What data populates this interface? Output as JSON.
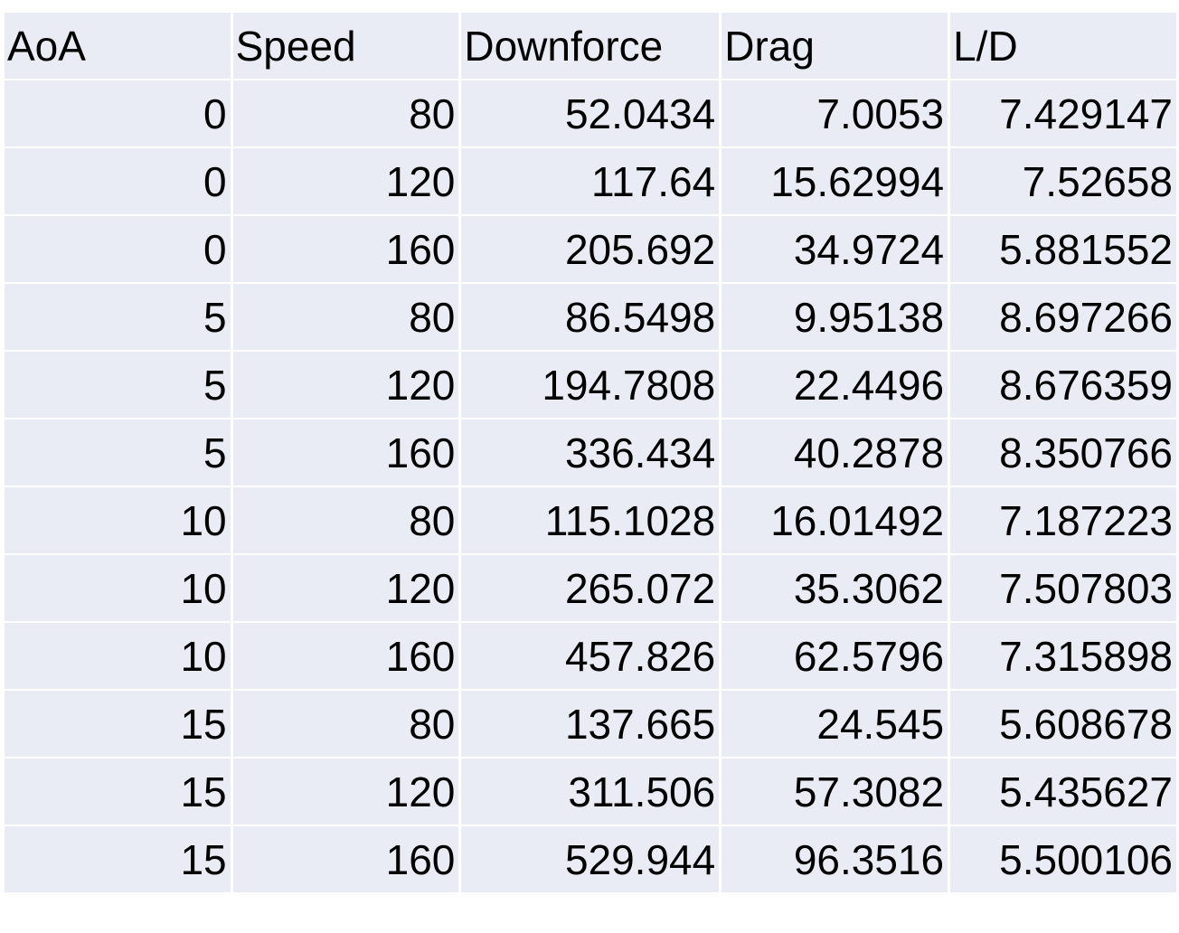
{
  "table": {
    "headers": [
      "AoA",
      "Speed",
      "Downforce",
      "Drag",
      "L/D"
    ],
    "rows": [
      [
        "0",
        "80",
        "52.0434",
        "7.0053",
        "7.429147"
      ],
      [
        "0",
        "120",
        "117.64",
        "15.62994",
        "7.52658"
      ],
      [
        "0",
        "160",
        "205.692",
        "34.9724",
        "5.881552"
      ],
      [
        "5",
        "80",
        "86.5498",
        "9.95138",
        "8.697266"
      ],
      [
        "5",
        "120",
        "194.7808",
        "22.4496",
        "8.676359"
      ],
      [
        "5",
        "160",
        "336.434",
        "40.2878",
        "8.350766"
      ],
      [
        "10",
        "80",
        "115.1028",
        "16.01492",
        "7.187223"
      ],
      [
        "10",
        "120",
        "265.072",
        "35.3062",
        "7.507803"
      ],
      [
        "10",
        "160",
        "457.826",
        "62.5796",
        "7.315898"
      ],
      [
        "15",
        "80",
        "137.665",
        "24.545",
        "5.608678"
      ],
      [
        "15",
        "120",
        "311.506",
        "57.3082",
        "5.435627"
      ],
      [
        "15",
        "160",
        "529.944",
        "96.3516",
        "5.500106"
      ]
    ]
  },
  "colors": {
    "cell_background": "#e9ebf5",
    "grid_lines": "#ffffff"
  }
}
